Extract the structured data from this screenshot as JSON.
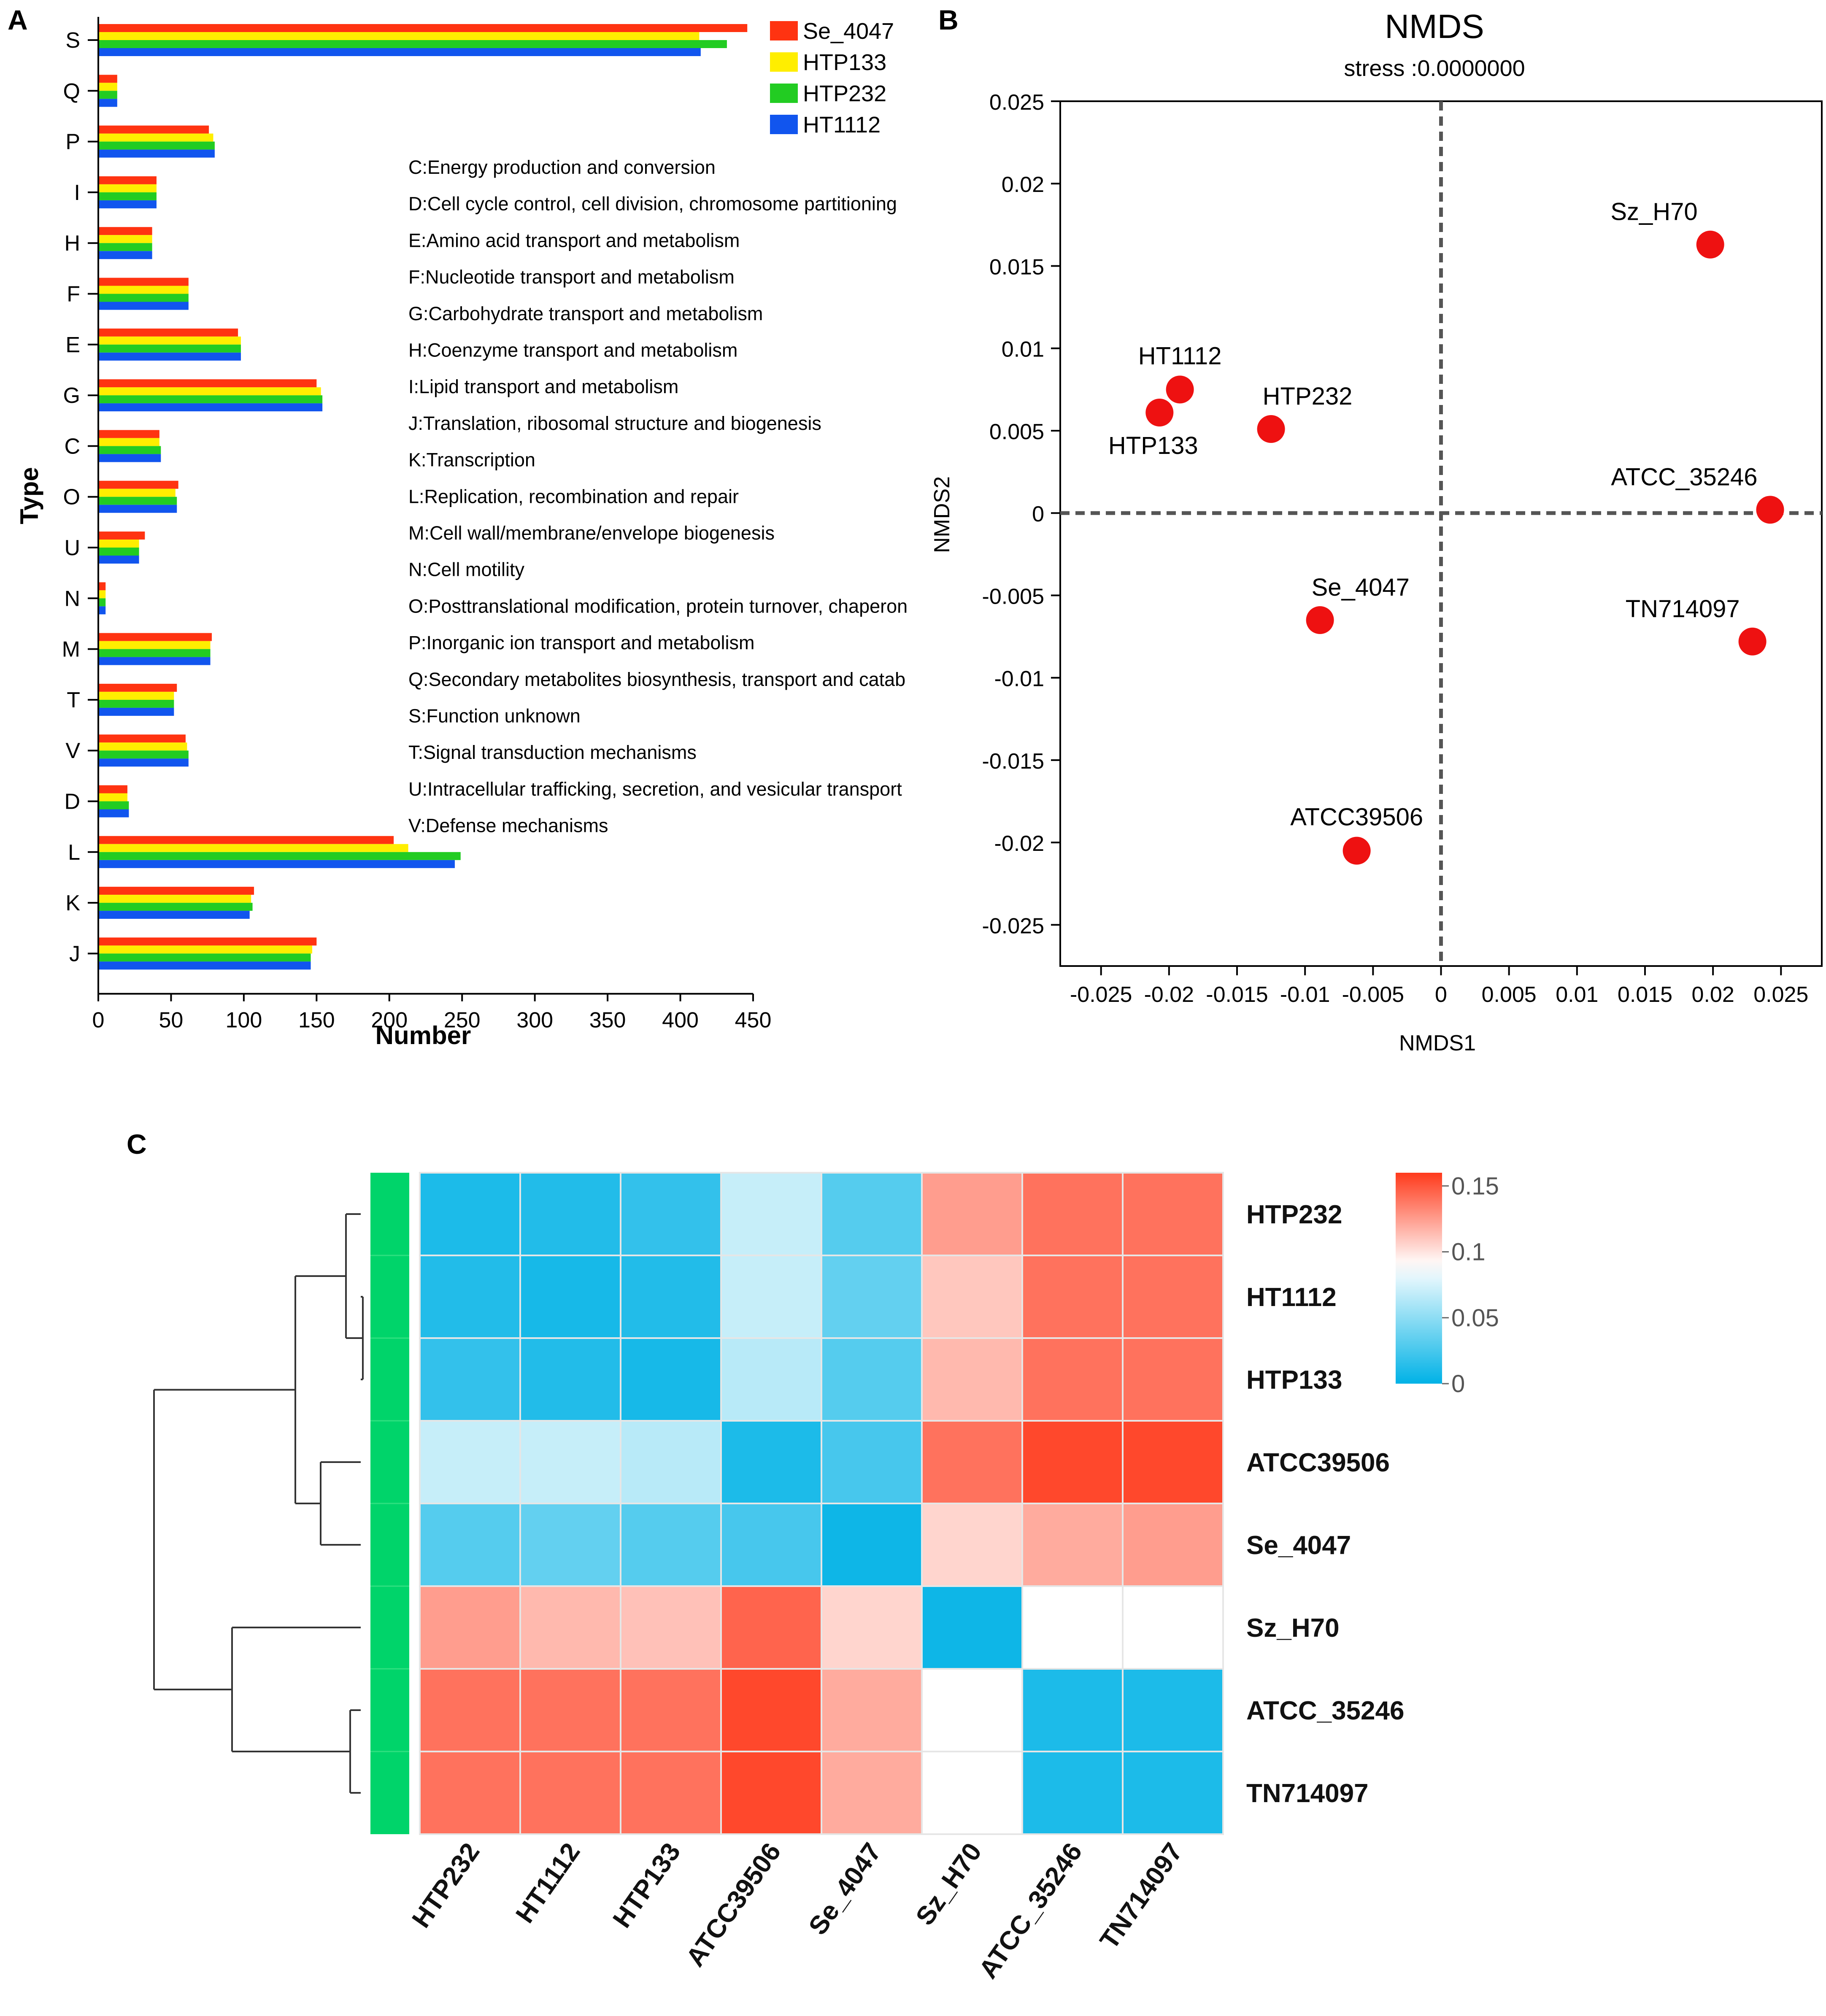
{
  "chart_data": [
    {
      "panel": "A",
      "type": "bar",
      "orientation": "horizontal",
      "title": "",
      "xlabel": "Number",
      "ylabel": "Type",
      "xlim": [
        0,
        450
      ],
      "xticks": [
        0,
        50,
        100,
        150,
        200,
        250,
        300,
        350,
        400,
        450
      ],
      "categories": [
        "S",
        "Q",
        "P",
        "I",
        "H",
        "F",
        "E",
        "G",
        "C",
        "O",
        "U",
        "N",
        "M",
        "T",
        "V",
        "D",
        "L",
        "K",
        "J"
      ],
      "series": [
        {
          "name": "Se_4047",
          "color": "#ff3311",
          "values": [
            446,
            13,
            76,
            40,
            37,
            62,
            96,
            150,
            42,
            55,
            32,
            5,
            78,
            54,
            60,
            20,
            203,
            107,
            150
          ]
        },
        {
          "name": "HTP133",
          "color": "#ffee00",
          "values": [
            413,
            13,
            79,
            40,
            37,
            62,
            98,
            153,
            42,
            53,
            28,
            5,
            77,
            52,
            61,
            20,
            213,
            105,
            147
          ]
        },
        {
          "name": "HTP232",
          "color": "#22cc22",
          "values": [
            432,
            13,
            80,
            40,
            37,
            62,
            98,
            154,
            43,
            54,
            28,
            5,
            77,
            52,
            62,
            21,
            249,
            106,
            146
          ]
        },
        {
          "name": "HT1112",
          "color": "#1155ee",
          "values": [
            414,
            13,
            80,
            40,
            37,
            62,
            98,
            154,
            43,
            54,
            28,
            5,
            77,
            52,
            62,
            21,
            245,
            104,
            146
          ]
        }
      ],
      "legend_position": "top-right",
      "annotations": [
        "C:Energy production and conversion",
        "D:Cell cycle control, cell division, chromosome partitioning",
        "E:Amino acid transport and metabolism",
        "F:Nucleotide transport and metabolism",
        "G:Carbohydrate transport and metabolism",
        "H:Coenzyme transport and metabolism",
        "I:Lipid transport and metabolism",
        "J:Translation, ribosomal structure and biogenesis",
        "K:Transcription",
        "L:Replication, recombination and repair",
        "M:Cell wall/membrane/envelope biogenesis",
        "N:Cell motility",
        "O:Posttranslational modification, protein turnover, chaperon",
        "P:Inorganic ion transport and metabolism",
        "Q:Secondary metabolites biosynthesis, transport and catab",
        "S:Function unknown",
        "T:Signal transduction mechanisms",
        "U:Intracellular trafficking, secretion, and vesicular transport",
        "V:Defense mechanisms"
      ]
    },
    {
      "panel": "B",
      "type": "scatter",
      "title": "NMDS",
      "subtitle": "stress :0.0000000",
      "xlabel": "NMDS1",
      "ylabel": "NMDS2",
      "xlim": [
        -0.028,
        0.028
      ],
      "ylim": [
        -0.0275,
        0.025
      ],
      "xticks": [
        -0.025,
        -0.02,
        -0.015,
        -0.01,
        -0.005,
        0,
        0.005,
        0.01,
        0.015,
        0.02,
        0.025
      ],
      "xtick_labels": [
        "-0.025",
        "-0.02",
        "-0.015",
        "-0.01",
        "-0.005",
        "0",
        "0.005",
        "0.01",
        "0.015",
        "0.02",
        "0.025"
      ],
      "yticks": [
        0.025,
        0.02,
        0.015,
        0.01,
        0.005,
        0,
        -0.005,
        -0.01,
        -0.015,
        -0.02,
        -0.025
      ],
      "ytick_labels": [
        "0.025",
        "0.02",
        "0.015",
        "0.01",
        "0.005",
        "0",
        "-0.005",
        "-0.01",
        "-0.015",
        "-0.02",
        "-0.025"
      ],
      "point_color": "#ee1111",
      "points": [
        {
          "name": "Sz_H70",
          "x": 0.0198,
          "y": 0.0163,
          "label_pos": "above-left"
        },
        {
          "name": "HT1112",
          "x": -0.0192,
          "y": 0.0075,
          "label_pos": "above"
        },
        {
          "name": "HTP133",
          "x": -0.0207,
          "y": 0.0061,
          "label_pos": "below"
        },
        {
          "name": "HTP232",
          "x": -0.0125,
          "y": 0.0051,
          "label_pos": "above-right"
        },
        {
          "name": "ATCC_35246",
          "x": 0.0242,
          "y": 0.0002,
          "label_pos": "above-left"
        },
        {
          "name": "Se_4047",
          "x": -0.0089,
          "y": -0.0065,
          "label_pos": "above-right"
        },
        {
          "name": "TN714097",
          "x": 0.0229,
          "y": -0.0078,
          "label_pos": "above-left"
        },
        {
          "name": "ATCC39506",
          "x": -0.0062,
          "y": -0.0205,
          "label_pos": "above"
        }
      ]
    },
    {
      "panel": "C",
      "type": "heatmap",
      "rows": [
        "HTP232",
        "HT1112",
        "HTP133",
        "ATCC39506",
        "Se_4047",
        "Sz_H70",
        "ATCC_35246",
        "TN714097"
      ],
      "columns": [
        "HTP232",
        "HT1112",
        "HTP133",
        "ATCC39506",
        "Se_4047",
        "Sz_H70",
        "ATCC_35246",
        "TN714097"
      ],
      "values": [
        [
          0.01,
          0.012,
          0.018,
          0.07,
          0.03,
          0.125,
          0.14,
          0.14
        ],
        [
          0.012,
          0.008,
          0.012,
          0.07,
          0.035,
          0.11,
          0.14,
          0.14
        ],
        [
          0.018,
          0.012,
          0.008,
          0.065,
          0.03,
          0.115,
          0.14,
          0.14
        ],
        [
          0.07,
          0.07,
          0.065,
          0.01,
          0.025,
          0.14,
          0.155,
          0.155
        ],
        [
          0.03,
          0.035,
          0.03,
          0.025,
          0.005,
          0.105,
          0.12,
          0.125
        ],
        [
          0.125,
          0.115,
          0.112,
          0.145,
          0.105,
          0.005,
          0.09,
          0.09
        ],
        [
          0.14,
          0.14,
          0.14,
          0.155,
          0.12,
          0.09,
          0.01,
          0.01
        ],
        [
          0.14,
          0.14,
          0.14,
          0.155,
          0.12,
          0.09,
          0.01,
          0.01
        ]
      ],
      "color_scale": {
        "min": 0,
        "mid": 0.09,
        "max": 0.16,
        "low_color": "#00b2e6",
        "mid_color": "#ffffff",
        "high_color": "#ff3a1c",
        "legend_ticks": [
          0.15,
          0.1,
          0.05,
          0
        ],
        "legend_tick_labels": [
          "0.15",
          "0.1",
          "0.05",
          "0"
        ]
      },
      "row_annotation_color": "#00d46a",
      "dendrogram": "rows"
    }
  ],
  "panels": {
    "A": "A",
    "B": "B",
    "C": "C"
  }
}
